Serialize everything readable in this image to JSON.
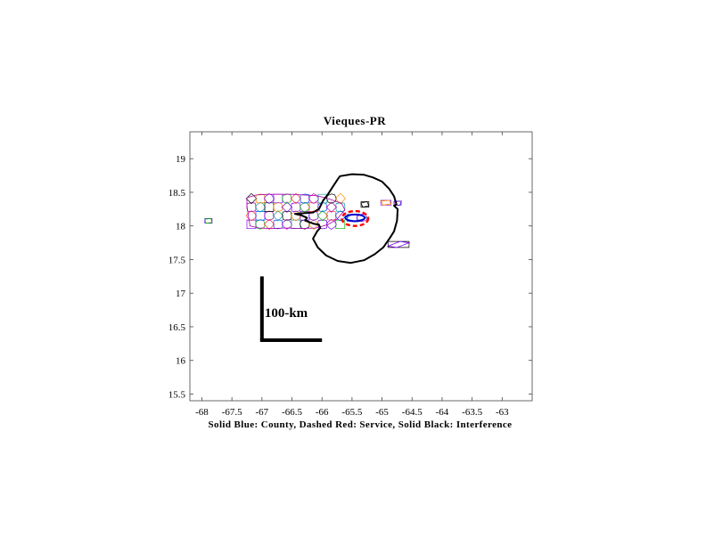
{
  "chart_data": {
    "type": "map",
    "title": "Vieques-PR",
    "xlabel": "Solid Blue: County, Dashed Red: Service, Solid Black: Interference",
    "ylabel": "",
    "xlim": [
      -68.2,
      -62.5
    ],
    "ylim": [
      15.4,
      19.4
    ],
    "x_ticks": [
      "-68",
      "-67.5",
      "-67",
      "-66.5",
      "-66",
      "-65.5",
      "-65",
      "-64.5",
      "-64",
      "-63.5",
      "-63"
    ],
    "y_ticks": [
      "15.5",
      "16",
      "16.5",
      "17",
      "17.5",
      "18",
      "18.5",
      "19"
    ],
    "scale_bar": {
      "label": "100-km",
      "origin": [
        -67.0,
        16.3
      ],
      "x_end": -66.0,
      "y_end": 17.25
    },
    "county": {
      "color": "#0000cc",
      "center": [
        -65.45,
        18.12
      ],
      "rx": 0.16,
      "ry": 0.05
    },
    "service": {
      "color": "#ff0000",
      "center": [
        -65.45,
        18.11
      ],
      "rx": 0.22,
      "ry": 0.11
    },
    "interference": {
      "color": "#000000",
      "polygon": [
        [
          -65.5,
          18.77
        ],
        [
          -65.3,
          18.76
        ],
        [
          -65.15,
          18.72
        ],
        [
          -65.0,
          18.66
        ],
        [
          -64.88,
          18.55
        ],
        [
          -64.8,
          18.44
        ],
        [
          -64.76,
          18.32
        ],
        [
          -64.8,
          18.3
        ],
        [
          -64.74,
          18.25
        ],
        [
          -64.75,
          18.08
        ],
        [
          -64.8,
          17.92
        ],
        [
          -64.87,
          17.82
        ],
        [
          -64.98,
          17.68
        ],
        [
          -65.12,
          17.58
        ],
        [
          -65.3,
          17.49
        ],
        [
          -65.52,
          17.45
        ],
        [
          -65.74,
          17.48
        ],
        [
          -65.93,
          17.56
        ],
        [
          -66.07,
          17.68
        ],
        [
          -66.15,
          17.81
        ],
        [
          -66.08,
          17.92
        ],
        [
          -66.03,
          17.97
        ],
        [
          -66.05,
          18.02
        ],
        [
          -66.13,
          18.03
        ],
        [
          -66.28,
          18.08
        ],
        [
          -66.25,
          18.12
        ],
        [
          -66.35,
          18.16
        ],
        [
          -66.45,
          18.18
        ],
        [
          -66.15,
          18.2
        ],
        [
          -66.05,
          18.25
        ],
        [
          -65.98,
          18.38
        ],
        [
          -65.9,
          18.47
        ],
        [
          -65.83,
          18.57
        ],
        [
          -65.75,
          18.68
        ],
        [
          -65.7,
          18.74
        ]
      ]
    },
    "boundary_colors": [
      "#7f00ff",
      "#00b400",
      "#ff3333",
      "#0044ff",
      "#b000b0",
      "#00a0a0",
      "#000000",
      "#ff8800",
      "#6600cc"
    ],
    "islands": [
      {
        "name": "puerto-rico",
        "outline": [
          [
            -67.25,
            18.42
          ],
          [
            -67.1,
            18.46
          ],
          [
            -66.9,
            18.47
          ],
          [
            -66.7,
            18.47
          ],
          [
            -66.5,
            18.47
          ],
          [
            -66.3,
            18.46
          ],
          [
            -66.1,
            18.45
          ],
          [
            -65.95,
            18.42
          ],
          [
            -65.78,
            18.37
          ],
          [
            -65.67,
            18.33
          ],
          [
            -65.62,
            18.24
          ],
          [
            -65.75,
            18.1
          ],
          [
            -65.9,
            18.02
          ],
          [
            -66.1,
            17.97
          ],
          [
            -66.35,
            17.96
          ],
          [
            -66.6,
            17.97
          ],
          [
            -66.85,
            17.96
          ],
          [
            -67.05,
            17.97
          ],
          [
            -67.2,
            18.0
          ],
          [
            -67.22,
            18.12
          ],
          [
            -67.25,
            18.3
          ]
        ],
        "grid": {
          "cols": 11,
          "rows": 4
        }
      },
      {
        "name": "vieques",
        "outline": [
          [
            -65.55,
            18.16
          ],
          [
            -65.35,
            18.17
          ],
          [
            -65.25,
            18.12
          ],
          [
            -65.45,
            18.07
          ],
          [
            -65.58,
            18.1
          ]
        ],
        "grid": {
          "cols": 2,
          "rows": 1
        }
      },
      {
        "name": "culebra",
        "outline": [
          [
            -65.35,
            18.34
          ],
          [
            -65.25,
            18.36
          ],
          [
            -65.22,
            18.3
          ],
          [
            -65.32,
            18.28
          ]
        ],
        "grid": {
          "cols": 1,
          "rows": 1
        }
      },
      {
        "name": "st-thomas",
        "outline": [
          [
            -65.02,
            18.37
          ],
          [
            -64.88,
            18.38
          ],
          [
            -64.85,
            18.33
          ],
          [
            -64.98,
            18.31
          ]
        ],
        "grid": {
          "cols": 1,
          "rows": 1
        }
      },
      {
        "name": "st-john",
        "outline": [
          [
            -64.8,
            18.36
          ],
          [
            -64.68,
            18.37
          ],
          [
            -64.7,
            18.31
          ],
          [
            -64.8,
            18.31
          ]
        ],
        "grid": {
          "cols": 1,
          "rows": 1
        }
      },
      {
        "name": "st-croix",
        "outline": [
          [
            -64.9,
            17.7
          ],
          [
            -64.7,
            17.77
          ],
          [
            -64.55,
            17.75
          ],
          [
            -64.75,
            17.68
          ]
        ],
        "grid": {
          "cols": 1,
          "rows": 1
        }
      },
      {
        "name": "mona",
        "outline": [
          [
            -67.95,
            18.1
          ],
          [
            -67.85,
            18.11
          ],
          [
            -67.83,
            18.05
          ],
          [
            -67.93,
            18.04
          ]
        ],
        "grid": {
          "cols": 1,
          "rows": 1
        }
      }
    ],
    "grid": false,
    "legend": "none"
  }
}
